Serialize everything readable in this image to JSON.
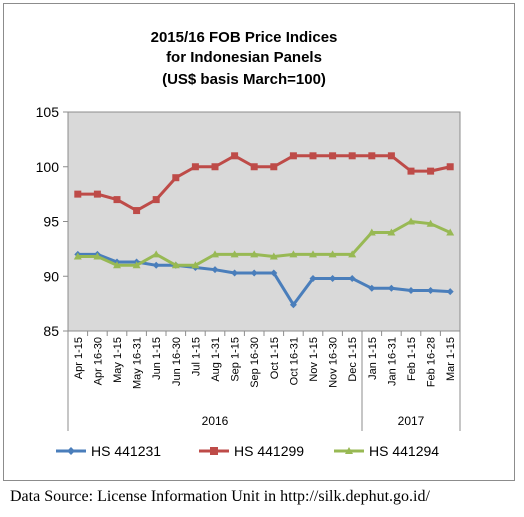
{
  "source_text": "Data Source: License Information Unit in http://silk.dephut.go.id/",
  "colors": {
    "plot_background": "#d9d9d9",
    "series": [
      "#4a7ebb",
      "#be4b48",
      "#98b954"
    ]
  },
  "chart_data": {
    "type": "line",
    "title_lines": [
      "2015/16 FOB Price Indices",
      "for Indonesian Panels",
      "(US$ basis March=100)"
    ],
    "categories": [
      "Apr 1-15",
      "Apr 16-30",
      "May 1-15",
      "May 16-31",
      "Jun 1-15",
      "Jun 16-30",
      "Jul 1-15",
      "Aug 1-31",
      "Sep 1-15",
      "Sep 16-30",
      "Oct 1-15",
      "Oct 16-31",
      "Nov 1-15",
      "Nov 16-30",
      "Dec 1-15",
      "Jan 1-15",
      "Jan 16-31",
      "Feb 1-15",
      "Feb 16-28",
      "Mar 1-15"
    ],
    "year_groups": [
      {
        "label": "2016",
        "start": 0,
        "end": 14
      },
      {
        "label": "2017",
        "start": 15,
        "end": 19
      }
    ],
    "ylim": [
      85,
      105
    ],
    "yticks": [
      85,
      90,
      95,
      100,
      105
    ],
    "grid": false,
    "legend_position": "bottom",
    "series": [
      {
        "name": "HS 441231",
        "values": [
          92,
          92,
          91.3,
          91.3,
          91.0,
          91.0,
          90.8,
          90.6,
          90.3,
          90.3,
          90.3,
          87.4,
          89.8,
          89.8,
          89.8,
          88.9,
          88.9,
          88.7,
          88.7,
          88.6
        ]
      },
      {
        "name": "HS 441299",
        "values": [
          97.5,
          97.5,
          97,
          96,
          97,
          99,
          100,
          100,
          101,
          100,
          100,
          101,
          101,
          101,
          101,
          101,
          101,
          99.6,
          99.6,
          100
        ]
      },
      {
        "name": "HS 441294",
        "values": [
          91.8,
          91.8,
          91,
          91,
          92,
          91,
          91,
          92,
          92,
          92,
          91.8,
          92,
          92,
          92,
          92,
          94,
          94,
          95,
          94.8,
          94
        ]
      }
    ]
  }
}
